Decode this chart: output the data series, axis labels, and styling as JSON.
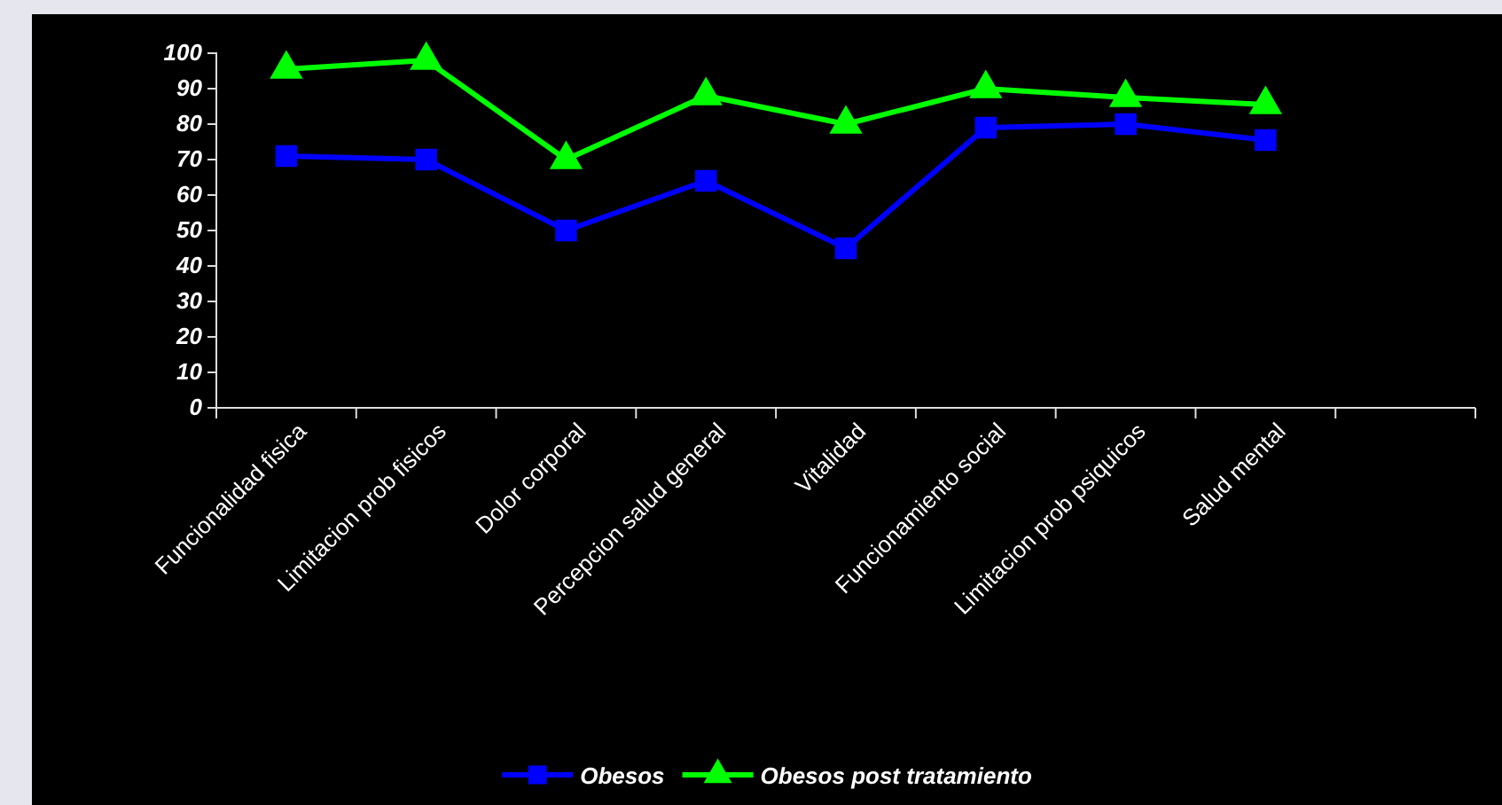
{
  "chart_data": {
    "type": "line",
    "categories": [
      "Funcionalidad fisica",
      "Limitacion prob fisicos",
      "Dolor corporal",
      "Percepcion salud general",
      "Vitalidad",
      "Funcionamiento social",
      "Limitacion prob psiquicos",
      "Salud mental",
      null
    ],
    "series": [
      {
        "name": "Obesos",
        "color": "#0000ff",
        "marker": "square",
        "values": [
          71,
          70,
          50,
          64,
          45,
          79,
          80,
          75.5,
          null
        ]
      },
      {
        "name": "Obesos post tratamiento",
        "color": "#00ff00",
        "marker": "triangle",
        "values": [
          95.5,
          98,
          70,
          88,
          80,
          90,
          87.5,
          85.5,
          null
        ]
      }
    ],
    "ylim": [
      0,
      100
    ],
    "yticks": [
      0,
      10,
      20,
      30,
      40,
      50,
      60,
      70,
      80,
      90,
      100
    ],
    "grid": false,
    "legend": "bottom",
    "line_style": "solid"
  }
}
